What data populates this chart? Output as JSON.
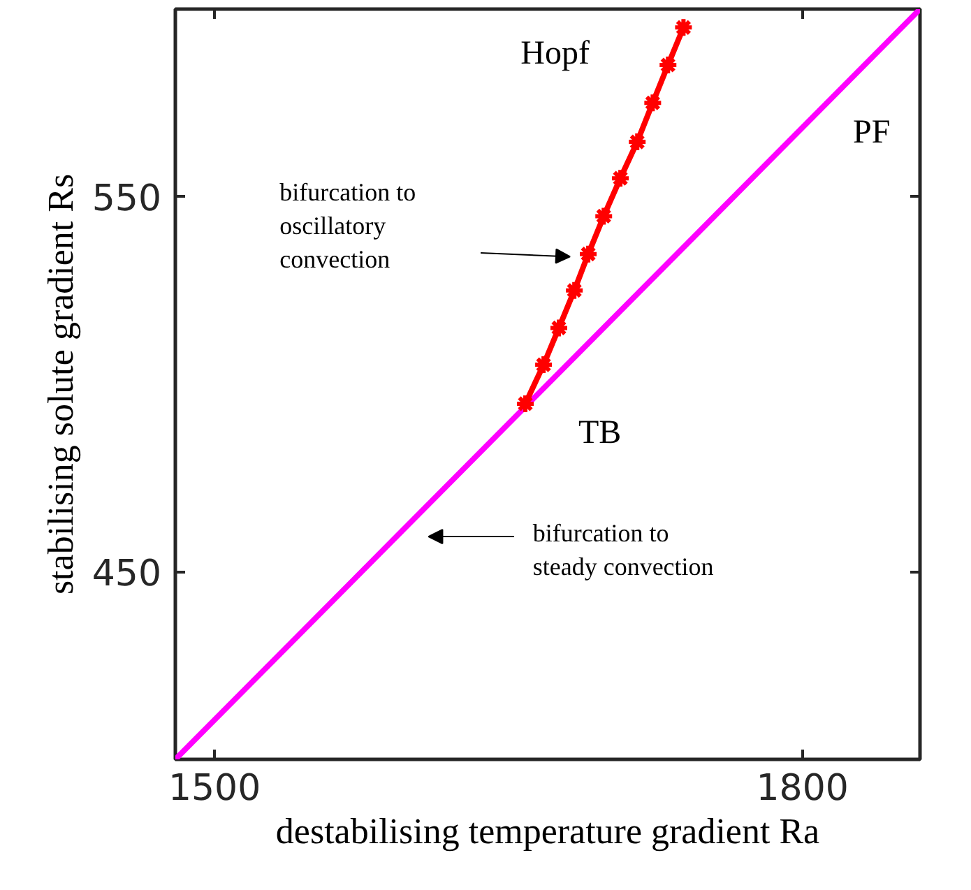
{
  "chart_data": {
    "type": "line",
    "xlabel": "destabilising temperature gradient Ra",
    "ylabel": "stabilising solute gradient Rs",
    "xlim": [
      1480,
      1860
    ],
    "ylim": [
      400,
      600
    ],
    "xticks": [
      1500,
      1800
    ],
    "yticks": [
      450,
      550
    ],
    "grid": false,
    "line_style": "solid",
    "series": [
      {
        "color": "#ff00ff",
        "x": [
          1480,
          1860
        ],
        "values": [
          400,
          600
        ],
        "marker": "none"
      },
      {
        "color": "#ff0000",
        "x": [
          1658.6,
          1667.9,
          1675.7,
          1683.6,
          1690.7,
          1698.6,
          1707.1,
          1715.7,
          1723.6,
          1731.4,
          1739.3
        ],
        "values": [
          494.8,
          505.2,
          515.0,
          525.0,
          534.7,
          544.8,
          554.9,
          564.6,
          575.0,
          585.1,
          595.1
        ],
        "marker": "cross"
      }
    ],
    "annotations": [
      "Hopf",
      "PF",
      "TB",
      "bifurcation to\noscillatory\nconvection",
      "bifurcation to\nsteady convection"
    ]
  }
}
